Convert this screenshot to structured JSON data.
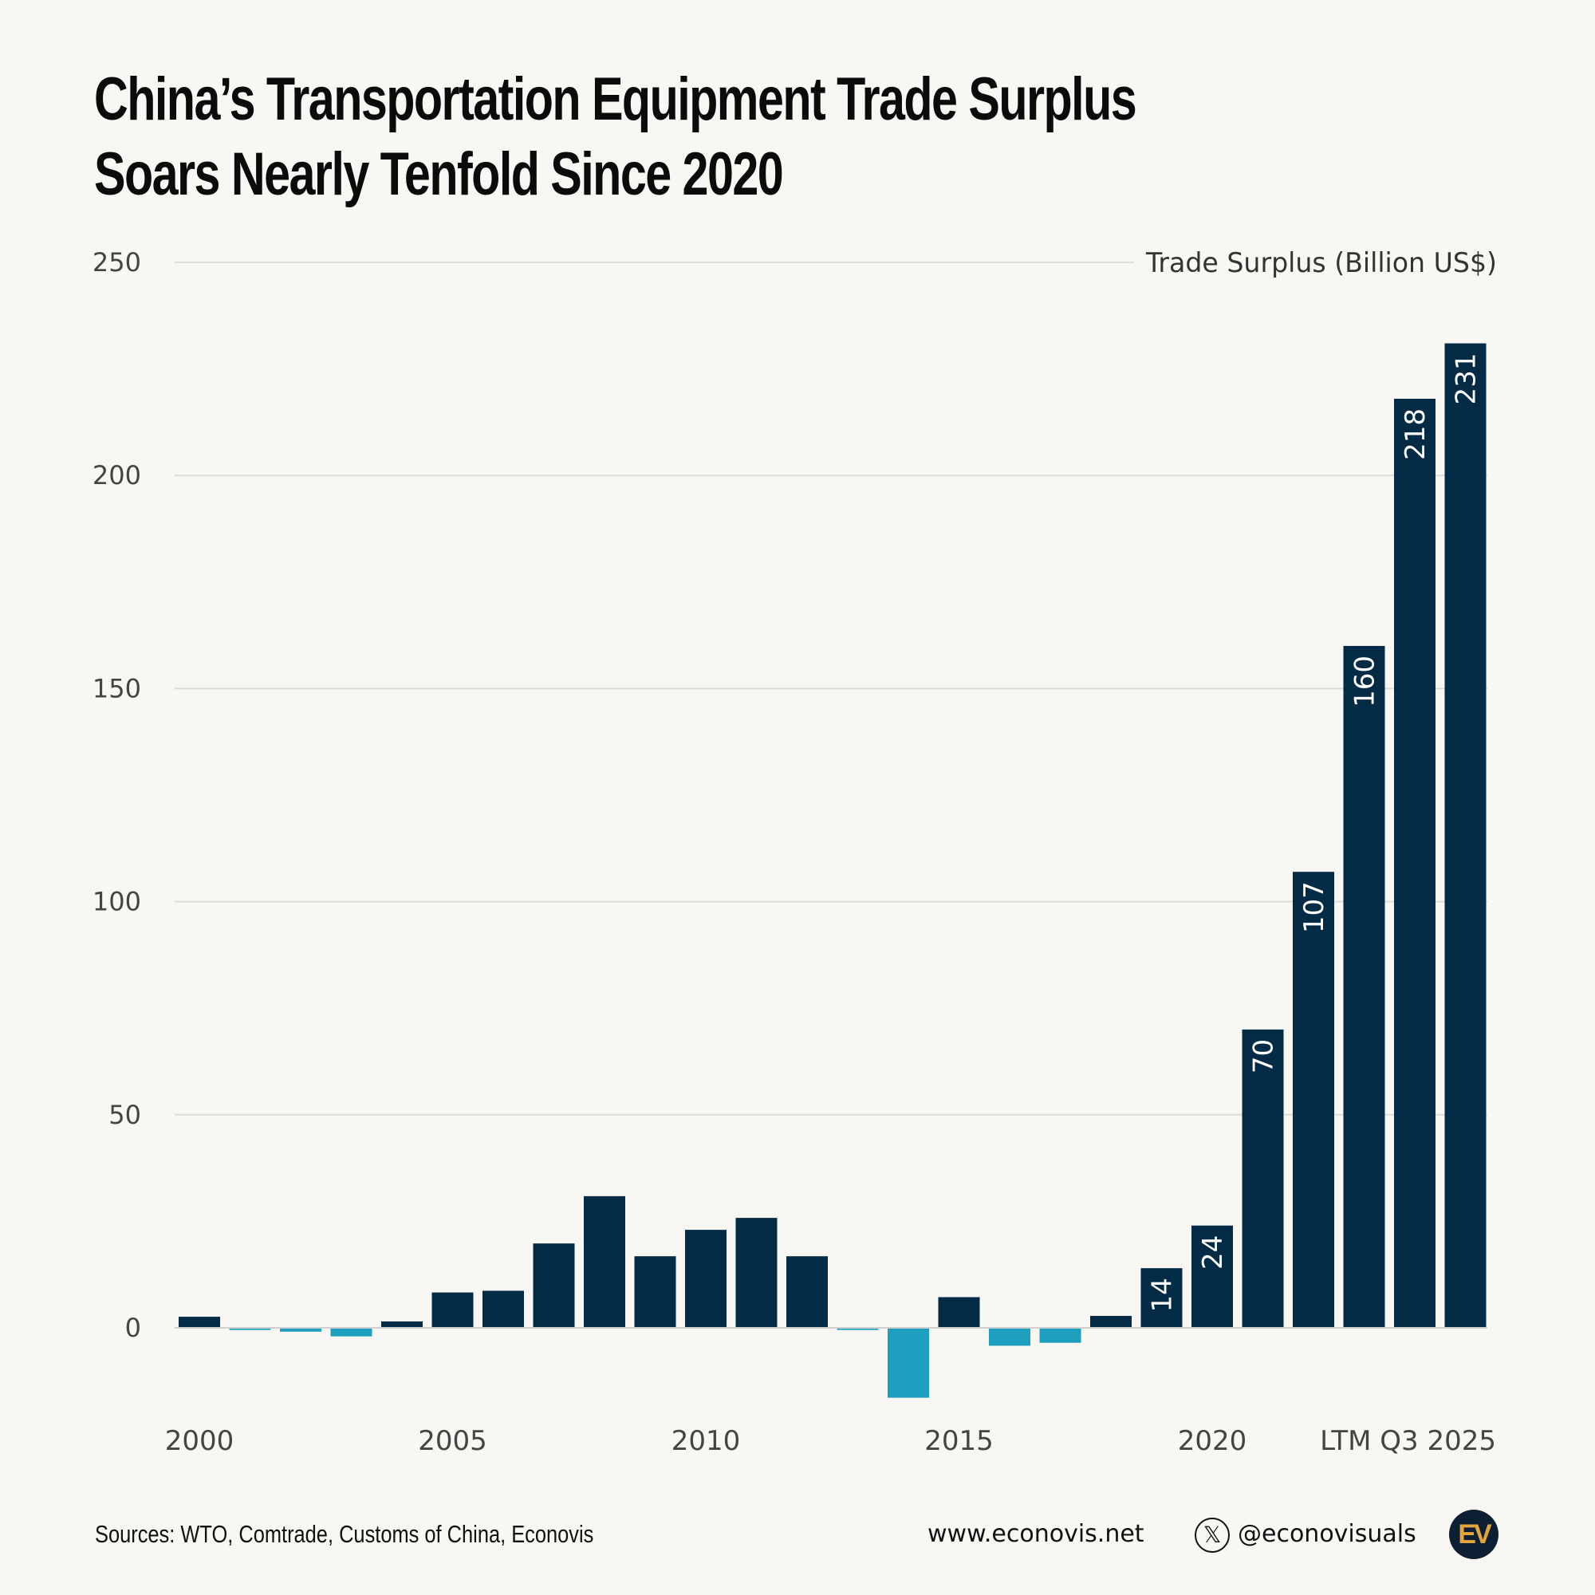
{
  "title_lines": [
    "China’s Transportation Equipment Trade Surplus",
    "Soars Nearly Tenfold Since 2020"
  ],
  "footer": {
    "sources": "Sources: WTO, Comtrade, Customs of China, Econovis",
    "website": "www.econovis.net",
    "handle": "@econovisuals",
    "logo_text": "EV"
  },
  "colors": {
    "positive": "#032b45",
    "negative": "#1f9fbf",
    "background": "#f8f7f3",
    "grid": "#dcdcdc"
  },
  "chart_data": {
    "type": "bar",
    "title": "China’s Transportation Equipment Trade Surplus Soars Nearly Tenfold Since 2020",
    "ylabel": "Trade Surplus (Billion US$)",
    "ylim": [
      -20,
      250
    ],
    "yticks": [
      0,
      50,
      100,
      150,
      200,
      250
    ],
    "grid": true,
    "xtick_labels": [
      "2000",
      "2005",
      "2010",
      "2015",
      "2020",
      "LTM Q3 2025"
    ],
    "categories": [
      "2000",
      "2001",
      "2002",
      "2003",
      "2004",
      "2005",
      "2006",
      "2007",
      "2008",
      "2009",
      "2010",
      "2011",
      "2012",
      "2013",
      "2014",
      "2015",
      "2016",
      "2017",
      "2018",
      "2019",
      "2020",
      "2021",
      "2022",
      "2023",
      "2024",
      "LTM Q3 2025"
    ],
    "values": [
      2.6,
      -0.5,
      -0.9,
      -2,
      1.5,
      8.3,
      8.7,
      19.8,
      30.9,
      16.8,
      23,
      25.8,
      16.8,
      -0.5,
      -16.4,
      7.2,
      -4.2,
      -3.5,
      2.8,
      14,
      24,
      70,
      107,
      160,
      218,
      231
    ],
    "data_labels": {
      "2019": "14",
      "2020": "24",
      "2021": "70",
      "2022": "107",
      "2023": "160",
      "2024": "218",
      "LTM Q3 2025": "231"
    }
  }
}
